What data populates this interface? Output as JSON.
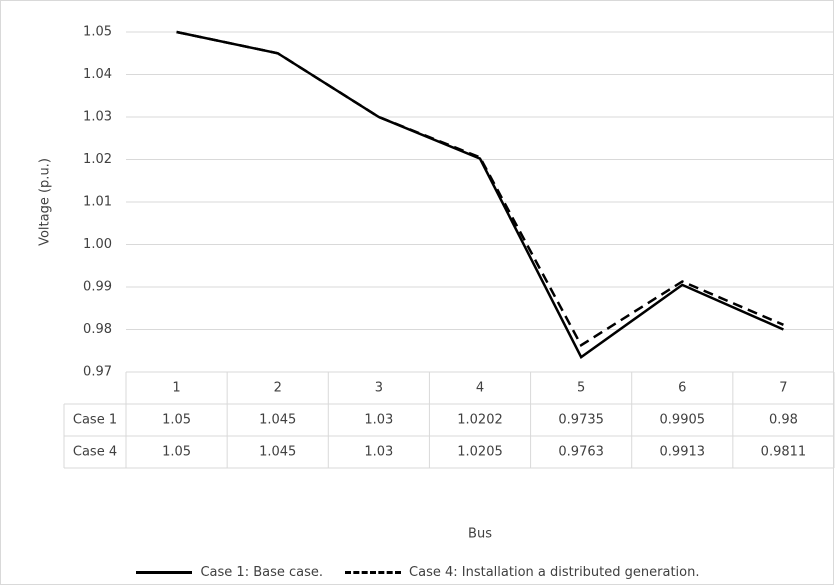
{
  "chart_data": {
    "type": "line",
    "xlabel": "Bus",
    "ylabel": "Voltage (p.u.)",
    "ylim": [
      0.97,
      1.05
    ],
    "yticks": [
      "0.97",
      "0.98",
      "0.99",
      "1.00",
      "1.01",
      "1.02",
      "1.03",
      "1.04",
      "1.05"
    ],
    "categories": [
      "1",
      "2",
      "3",
      "4",
      "5",
      "6",
      "7"
    ],
    "grid": true,
    "legend_position": "bottom",
    "series": [
      {
        "name": "Case 1: Base case.",
        "table_label": "Case 1",
        "style": "solid",
        "values": [
          1.05,
          1.045,
          1.03,
          1.0202,
          0.9735,
          0.9905,
          0.98
        ],
        "display": [
          "1.05",
          "1.045",
          "1.03",
          "1.0202",
          "0.9735",
          "0.9905",
          "0.98"
        ]
      },
      {
        "name": "Case 4: Installation a distributed generation.",
        "table_label": "Case 4",
        "style": "dashed",
        "values": [
          1.05,
          1.045,
          1.03,
          1.0205,
          0.9763,
          0.9913,
          0.9811
        ],
        "display": [
          "1.05",
          "1.045",
          "1.03",
          "1.0205",
          "0.9763",
          "0.9913",
          "0.9811"
        ]
      }
    ],
    "line_color": "#000000",
    "grid_color": "#d9d9d9"
  }
}
